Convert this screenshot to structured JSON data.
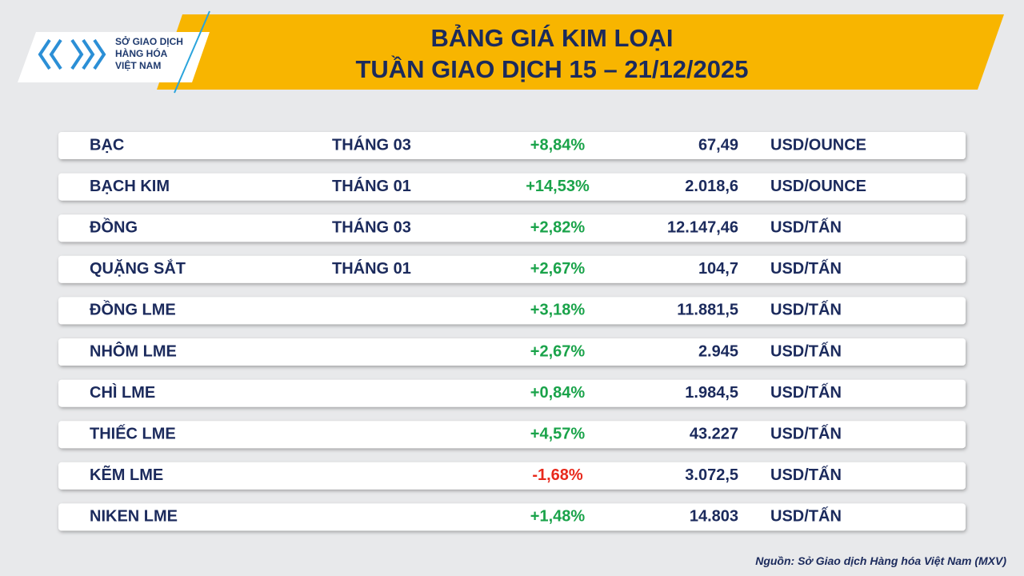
{
  "header": {
    "logo": [
      "SỞ GIAO DỊCH",
      "HÀNG HÓA",
      "VIỆT NAM"
    ],
    "title": [
      "BẢNG GIÁ KIM LOẠI",
      "TUẦN GIAO DỊCH 15 – 21/12/2025"
    ]
  },
  "table": {
    "rows": [
      [
        "BẠC",
        "THÁNG 03",
        "+8,84%",
        "67,49",
        "USD/OUNCE"
      ],
      [
        "BẠCH KIM",
        "THÁNG 01",
        "+14,53%",
        "2.018,6",
        "USD/OUNCE"
      ],
      [
        "ĐỒNG",
        "THÁNG 03",
        "+2,82%",
        "12.147,46",
        "USD/TẤN"
      ],
      [
        "QUẶNG SẮT",
        "THÁNG 01",
        "+2,67%",
        "104,7",
        "USD/TẤN"
      ],
      [
        "ĐỒNG LME",
        null,
        "+3,18%",
        "11.881,5",
        "USD/TẤN"
      ],
      [
        "NHÔM LME",
        null,
        "+2,67%",
        "2.945",
        "USD/TẤN"
      ],
      [
        "CHÌ LME",
        null,
        "+0,84%",
        "1.984,5",
        "USD/TẤN"
      ],
      [
        "THIẾC LME",
        null,
        "+4,57%",
        "43.227",
        "USD/TẤN"
      ],
      [
        "KẼM LME",
        null,
        "-1,68%",
        "3.072,5",
        "USD/TẤN"
      ],
      [
        "NIKEN LME",
        null,
        "+1,48%",
        "14.803",
        "USD/TẤN"
      ]
    ]
  },
  "source": "Nguồn: Sở Giao dịch Hàng hóa Việt Nam (MXV)"
}
